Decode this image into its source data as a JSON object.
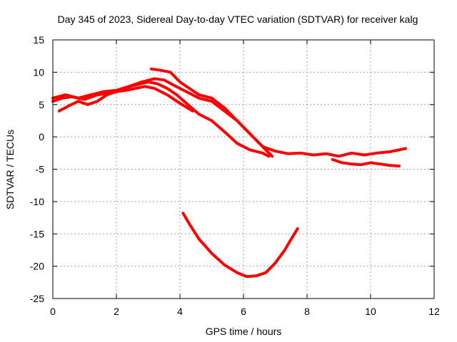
{
  "chart_data": {
    "type": "line",
    "title": "Day 345 of 2023, Sidereal Day-to-day VTEC variation (SDTVAR) for receiver kalg",
    "xlabel": "GPS time / hours",
    "ylabel": "SDTVAR / TECUs",
    "xlim": [
      0,
      12
    ],
    "ylim": [
      -25,
      15
    ],
    "xticks": [
      0,
      2,
      4,
      6,
      8,
      10,
      12
    ],
    "yticks": [
      15,
      10,
      5,
      0,
      -5,
      -10,
      -15,
      -20,
      -25
    ],
    "grid": true,
    "color": "#ff0000",
    "series": [
      {
        "name": "track-a",
        "x": [
          0.0,
          0.3,
          0.6,
          1.0,
          1.4,
          1.8,
          2.2,
          2.6,
          3.0,
          3.3,
          3.6,
          3.9,
          4.2,
          4.6,
          5.0,
          5.4,
          5.8,
          6.2,
          6.6,
          6.8
        ],
        "y": [
          5.5,
          6.0,
          6.2,
          5.8,
          6.5,
          6.8,
          7.5,
          8.0,
          8.5,
          8.2,
          7.5,
          6.5,
          5.2,
          3.5,
          2.5,
          0.8,
          -1.0,
          -2.0,
          -2.5,
          -3.0
        ]
      },
      {
        "name": "track-b",
        "x": [
          0.0,
          0.4,
          0.8,
          1.2,
          1.6,
          2.0,
          2.4,
          2.8,
          3.2,
          3.5,
          3.8,
          4.2,
          4.6,
          5.0,
          5.4,
          5.8,
          6.2,
          6.6,
          6.9
        ],
        "y": [
          6.0,
          6.5,
          6.0,
          6.5,
          7.0,
          7.2,
          7.8,
          8.5,
          9.0,
          8.8,
          8.0,
          7.0,
          6.0,
          5.5,
          4.0,
          2.5,
          0.5,
          -1.5,
          -3.0
        ]
      },
      {
        "name": "track-c",
        "x": [
          3.1,
          3.4,
          3.7,
          4.0,
          4.3,
          4.6,
          5.0,
          5.4,
          5.7,
          6.0,
          6.3,
          6.6,
          7.0,
          7.4,
          7.8,
          8.2,
          8.6,
          9.0,
          9.4,
          9.8,
          10.2,
          10.6,
          10.9,
          11.1
        ],
        "y": [
          10.5,
          10.3,
          10.0,
          8.5,
          7.5,
          6.5,
          6.0,
          4.5,
          3.0,
          1.5,
          0.0,
          -1.5,
          -2.2,
          -2.6,
          -2.5,
          -2.8,
          -2.6,
          -3.0,
          -2.5,
          -2.8,
          -2.5,
          -2.3,
          -2.0,
          -1.8
        ]
      },
      {
        "name": "track-d",
        "x": [
          0.2,
          0.5,
          0.8,
          1.1,
          1.4,
          1.7,
          2.0,
          2.3,
          2.6,
          2.9,
          3.2,
          3.6,
          4.0,
          4.4
        ],
        "y": [
          4.0,
          4.8,
          5.5,
          5.0,
          5.5,
          6.5,
          7.0,
          7.2,
          7.5,
          7.8,
          7.5,
          6.5,
          5.2,
          4.0
        ]
      },
      {
        "name": "track-e",
        "x": [
          8.8,
          9.1,
          9.4,
          9.7,
          10.0,
          10.3,
          10.6,
          10.9
        ],
        "y": [
          -3.5,
          -4.0,
          -4.2,
          -4.3,
          -4.0,
          -4.2,
          -4.4,
          -4.5
        ]
      },
      {
        "name": "track-f",
        "x": [
          4.1,
          4.3,
          4.6,
          5.0,
          5.4,
          5.8,
          6.1,
          6.4,
          6.7,
          7.0,
          7.3,
          7.5,
          7.7
        ],
        "y": [
          -11.8,
          -13.5,
          -15.8,
          -18.0,
          -19.8,
          -21.0,
          -21.6,
          -21.5,
          -21.0,
          -19.5,
          -17.5,
          -15.8,
          -14.2
        ]
      }
    ]
  }
}
